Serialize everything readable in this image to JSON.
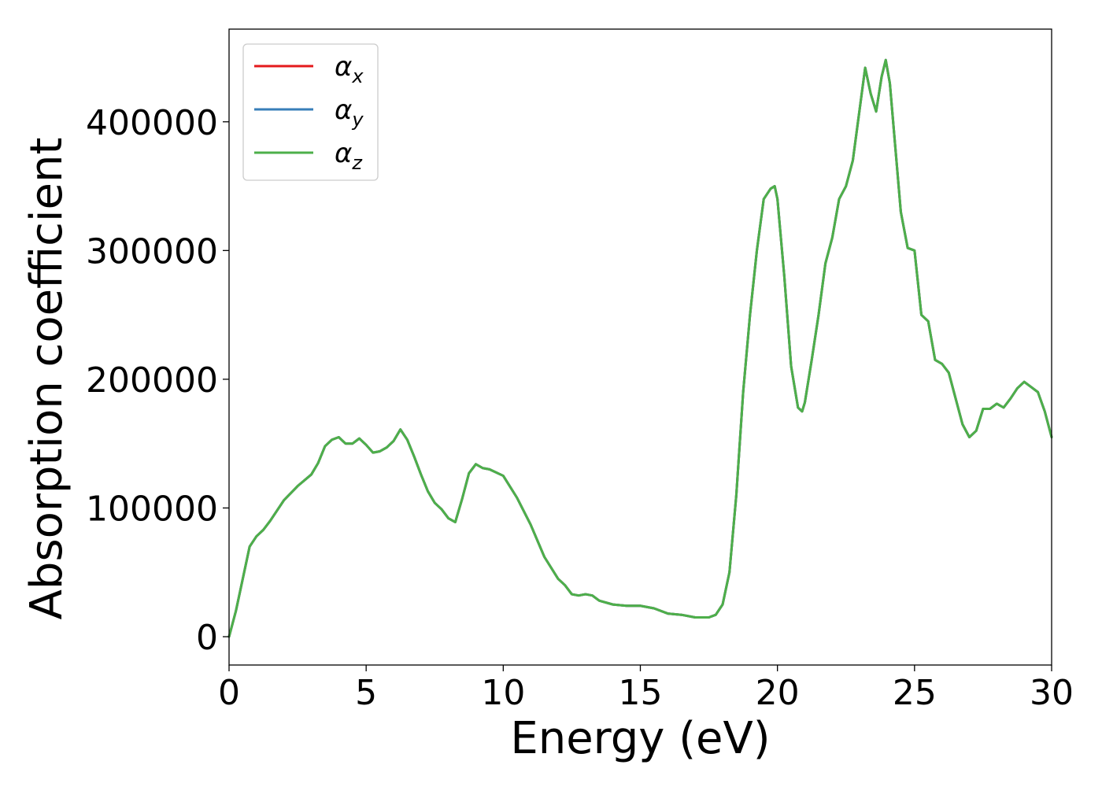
{
  "chart_data": {
    "type": "line",
    "title": "",
    "xlabel": "Energy (eV)",
    "ylabel": "Absorption coefficient",
    "xlim": [
      0,
      30
    ],
    "ylim": [
      -22000,
      472000
    ],
    "xticks": [
      0,
      5,
      10,
      15,
      20,
      25,
      30
    ],
    "xtick_labels": [
      "0",
      "5",
      "10",
      "15",
      "20",
      "25",
      "30"
    ],
    "yticks": [
      0,
      100000,
      200000,
      300000,
      400000
    ],
    "ytick_labels": [
      "0",
      "100000",
      "200000",
      "300000",
      "400000"
    ],
    "grid": false,
    "legend_position": "top-left",
    "x": [
      0,
      0.25,
      0.5,
      0.75,
      1.0,
      1.25,
      1.5,
      2.0,
      2.5,
      3.0,
      3.25,
      3.5,
      3.75,
      4.0,
      4.25,
      4.5,
      4.75,
      5.0,
      5.25,
      5.5,
      5.75,
      6.0,
      6.25,
      6.5,
      6.75,
      7.0,
      7.25,
      7.5,
      7.75,
      8.0,
      8.25,
      8.5,
      8.75,
      9.0,
      9.25,
      9.5,
      10.0,
      10.5,
      11.0,
      11.5,
      12.0,
      12.25,
      12.5,
      12.75,
      13.0,
      13.25,
      13.5,
      14.0,
      14.5,
      15.0,
      15.5,
      16.0,
      16.5,
      17.0,
      17.5,
      17.75,
      18.0,
      18.25,
      18.5,
      18.75,
      19.0,
      19.25,
      19.5,
      19.75,
      19.9,
      20.0,
      20.25,
      20.5,
      20.75,
      20.9,
      21.0,
      21.25,
      21.5,
      21.75,
      22.0,
      22.25,
      22.5,
      22.75,
      23.0,
      23.2,
      23.4,
      23.6,
      23.8,
      23.95,
      24.1,
      24.3,
      24.5,
      24.75,
      25.0,
      25.25,
      25.5,
      25.75,
      26.0,
      26.25,
      26.5,
      26.75,
      27.0,
      27.25,
      27.5,
      27.75,
      28.0,
      28.25,
      28.5,
      28.75,
      29.0,
      29.25,
      29.5,
      29.75,
      30.0
    ],
    "series": [
      {
        "name": "αx",
        "label_main": "α",
        "label_sub": "x",
        "color": "#e41a1c",
        "values": [
          0,
          20000,
          45000,
          70000,
          78000,
          83000,
          90000,
          106000,
          117000,
          126000,
          135000,
          148000,
          153000,
          155000,
          150000,
          150000,
          154000,
          149000,
          143000,
          144000,
          147000,
          152000,
          161000,
          153000,
          140000,
          126000,
          113000,
          104000,
          99000,
          92000,
          89000,
          107000,
          127000,
          134000,
          131000,
          130000,
          125000,
          108000,
          87000,
          62000,
          45000,
          40000,
          33000,
          32000,
          33000,
          32000,
          28000,
          25000,
          24000,
          24000,
          22000,
          18000,
          17000,
          15000,
          15000,
          17000,
          25000,
          50000,
          110000,
          190000,
          250000,
          300000,
          340000,
          348000,
          350000,
          340000,
          280000,
          210000,
          178000,
          175000,
          182000,
          215000,
          250000,
          290000,
          310000,
          340000,
          350000,
          370000,
          410000,
          442000,
          422000,
          408000,
          435000,
          448000,
          430000,
          380000,
          330000,
          302000,
          300000,
          250000,
          245000,
          215000,
          212000,
          205000,
          185000,
          165000,
          155000,
          160000,
          177000,
          177000,
          181000,
          178000,
          185000,
          193000,
          198000,
          194000,
          190000,
          175000,
          155000
        ]
      },
      {
        "name": "αy",
        "label_main": "α",
        "label_sub": "y",
        "color": "#377eb8",
        "values": [
          0,
          20000,
          45000,
          70000,
          78000,
          83000,
          90000,
          106000,
          117000,
          126000,
          135000,
          148000,
          153000,
          155000,
          150000,
          150000,
          154000,
          149000,
          143000,
          144000,
          147000,
          152000,
          161000,
          153000,
          140000,
          126000,
          113000,
          104000,
          99000,
          92000,
          89000,
          107000,
          127000,
          134000,
          131000,
          130000,
          125000,
          108000,
          87000,
          62000,
          45000,
          40000,
          33000,
          32000,
          33000,
          32000,
          28000,
          25000,
          24000,
          24000,
          22000,
          18000,
          17000,
          15000,
          15000,
          17000,
          25000,
          50000,
          110000,
          190000,
          250000,
          300000,
          340000,
          348000,
          350000,
          340000,
          280000,
          210000,
          178000,
          175000,
          182000,
          215000,
          250000,
          290000,
          310000,
          340000,
          350000,
          370000,
          410000,
          442000,
          422000,
          408000,
          435000,
          448000,
          430000,
          380000,
          330000,
          302000,
          300000,
          250000,
          245000,
          215000,
          212000,
          205000,
          185000,
          165000,
          155000,
          160000,
          177000,
          177000,
          181000,
          178000,
          185000,
          193000,
          198000,
          194000,
          190000,
          175000,
          155000
        ]
      },
      {
        "name": "αz",
        "label_main": "α",
        "label_sub": "z",
        "color": "#4daf4a",
        "values": [
          0,
          20000,
          45000,
          70000,
          78000,
          83000,
          90000,
          106000,
          117000,
          126000,
          135000,
          148000,
          153000,
          155000,
          150000,
          150000,
          154000,
          149000,
          143000,
          144000,
          147000,
          152000,
          161000,
          153000,
          140000,
          126000,
          113000,
          104000,
          99000,
          92000,
          89000,
          107000,
          127000,
          134000,
          131000,
          130000,
          125000,
          108000,
          87000,
          62000,
          45000,
          40000,
          33000,
          32000,
          33000,
          32000,
          28000,
          25000,
          24000,
          24000,
          22000,
          18000,
          17000,
          15000,
          15000,
          17000,
          25000,
          50000,
          110000,
          190000,
          250000,
          300000,
          340000,
          348000,
          350000,
          340000,
          280000,
          210000,
          178000,
          175000,
          182000,
          215000,
          250000,
          290000,
          310000,
          340000,
          350000,
          370000,
          410000,
          442000,
          422000,
          408000,
          435000,
          448000,
          430000,
          380000,
          330000,
          302000,
          300000,
          250000,
          245000,
          215000,
          212000,
          205000,
          185000,
          165000,
          155000,
          160000,
          177000,
          177000,
          181000,
          178000,
          185000,
          193000,
          198000,
          194000,
          190000,
          175000,
          155000
        ]
      }
    ]
  }
}
